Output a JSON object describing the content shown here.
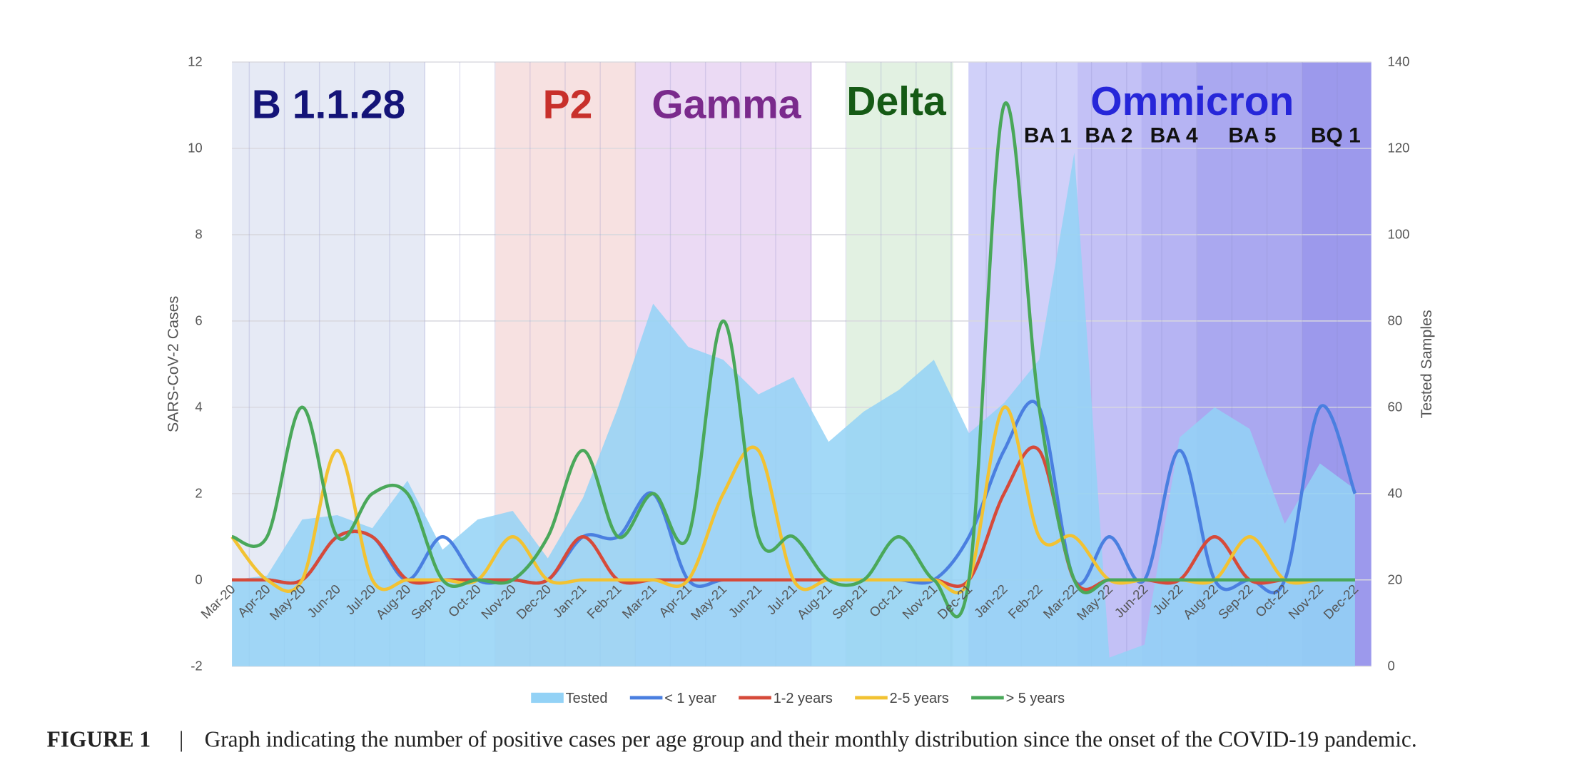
{
  "chart_data": {
    "type": "line",
    "categories": [
      "Mar-20",
      "Apr-20",
      "May-20",
      "Jun-20",
      "Jul-20",
      "Aug-20",
      "Sep-20",
      "Oct-20",
      "Nov-20",
      "Dec-20",
      "Jan-21",
      "Feb-21",
      "Mar-21",
      "Apr-21",
      "May-21",
      "Jun-21",
      "Jul-21",
      "Aug-21",
      "Sep-21",
      "Oct-21",
      "Nov-21",
      "Dec-21",
      "Jan-22",
      "Feb-22",
      "Mar-22",
      "May-22",
      "Jun-22",
      "Jul-22",
      "Aug-22",
      "Sep-22",
      "Oct-22",
      "Nov-22",
      "Dec-22"
    ],
    "series": [
      {
        "name": "Tested",
        "type": "area",
        "axis": "y2",
        "color": "#93d2f6",
        "values": [
          20,
          21,
          34,
          35,
          32,
          43,
          27,
          34,
          36,
          25,
          39,
          60,
          84,
          74,
          71,
          63,
          67,
          52,
          59,
          64,
          71,
          54,
          61,
          71,
          119,
          2,
          5,
          53,
          60,
          55,
          33,
          47,
          41
        ]
      },
      {
        "name": "< 1 year",
        "color": "#4a7fe0",
        "values": [
          0,
          0,
          0,
          1,
          1,
          0,
          1,
          0,
          0,
          0,
          1,
          1,
          2,
          0,
          0,
          0,
          0,
          0,
          0,
          0,
          0,
          1,
          3,
          4,
          0,
          1,
          0,
          3,
          0,
          0,
          0,
          4,
          2
        ]
      },
      {
        "name": "1-2 years",
        "color": "#d64a3a",
        "values": [
          0,
          0,
          0,
          1,
          1,
          0,
          0,
          0,
          0,
          0,
          1,
          0,
          0,
          0,
          0,
          0,
          0,
          0,
          0,
          0,
          0,
          0,
          2,
          3,
          0,
          0,
          0,
          0,
          1,
          0,
          0,
          0,
          0
        ]
      },
      {
        "name": "2-5 years",
        "color": "#f2c232",
        "values": [
          1,
          0,
          0,
          3,
          0,
          0,
          0,
          0,
          1,
          0,
          0,
          0,
          0,
          0,
          2,
          3,
          0,
          0,
          0,
          0,
          0,
          0,
          4,
          1,
          1,
          0,
          0,
          0,
          0,
          1,
          0,
          0,
          0
        ]
      },
      {
        "name": "> 5 years",
        "color": "#4aa85a",
        "values": [
          1,
          1,
          4,
          1,
          2,
          2,
          0,
          0,
          0,
          1,
          3,
          1,
          2,
          1,
          6,
          1,
          1,
          0,
          0,
          1,
          0,
          0,
          11,
          4,
          0,
          0,
          0,
          0,
          0,
          0,
          0,
          0,
          0
        ]
      }
    ],
    "ylim": [
      -2,
      12
    ],
    "yticks": [
      -2,
      0,
      2,
      4,
      6,
      8,
      10,
      12
    ],
    "y2lim": [
      0,
      140
    ],
    "y2ticks": [
      0,
      20,
      40,
      60,
      80,
      100,
      120,
      140
    ],
    "ylabel": "SARS-CoV-2 Cases",
    "y2label": "Tested Samples",
    "grid": true,
    "annotations": [
      "B 1.1.28",
      "P2",
      "Gamma",
      "Delta",
      "Ommicron",
      "BA 1",
      "BA 2",
      "BA 4",
      "BA 5",
      "BQ 1"
    ]
  },
  "caption": {
    "label": "FIGURE 1",
    "text": "Graph indicating the number of positive cases per age group and their monthly distribution since the onset of the COVID-19 pandemic."
  }
}
